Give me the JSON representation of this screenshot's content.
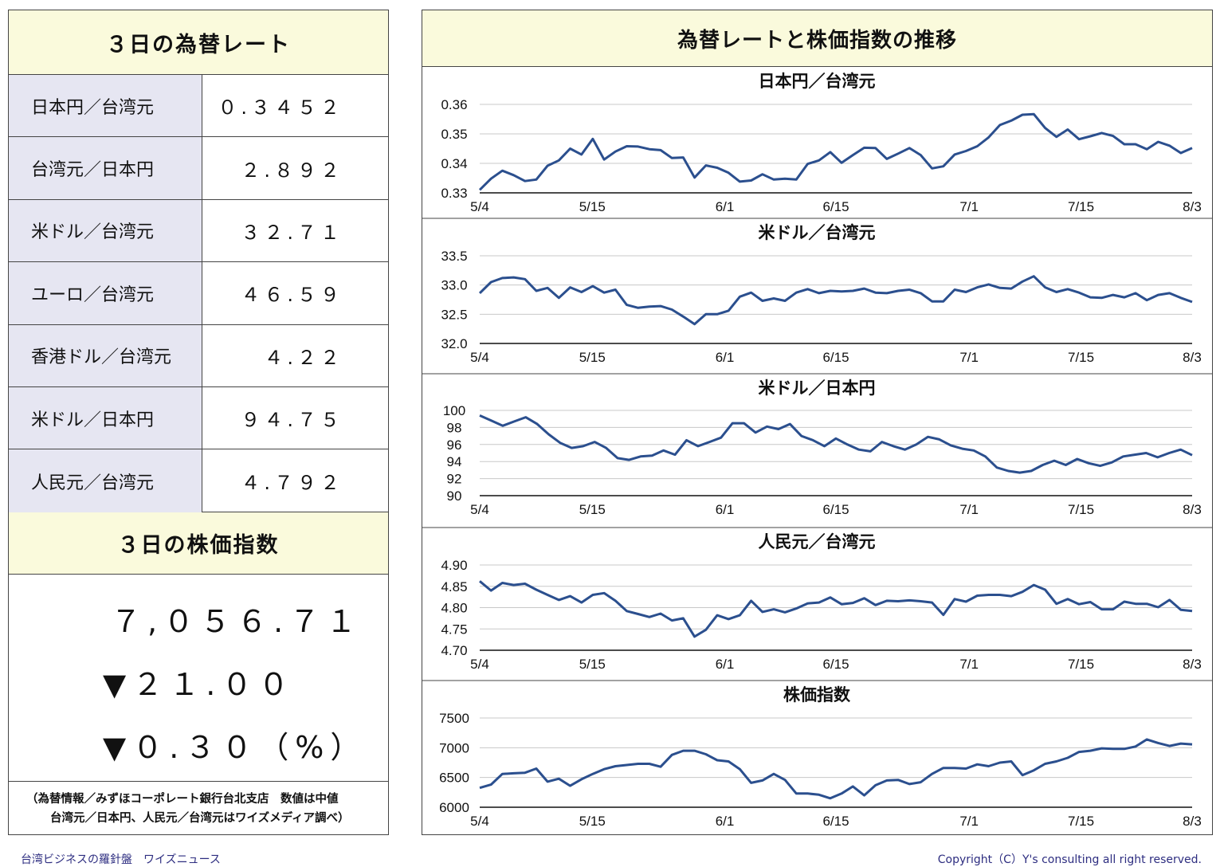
{
  "rates_panel": {
    "title": "３日の為替レート",
    "rows": [
      {
        "label": "日本円／台湾元",
        "value": "０.３４５２"
      },
      {
        "label": "台湾元／日本円",
        "value": "２.８９２"
      },
      {
        "label": "米ドル／台湾元",
        "value": "３２.７１"
      },
      {
        "label": "ユーロ／台湾元",
        "value": "４６.５９"
      },
      {
        "label": "香港ドル／台湾元",
        "value": "４.２２"
      },
      {
        "label": "米ドル／日本円",
        "value": "９４.７５"
      },
      {
        "label": "人民元／台湾元",
        "value": "４.７９２"
      }
    ]
  },
  "stock_panel": {
    "title": "３日の株価指数",
    "index": "７,０５６.７１",
    "change": "▼２１.００",
    "change_pct": "▼０.３０（%）"
  },
  "note": {
    "line1": "（為替情報／みずほコーポレート銀行台北支店　数値は中値",
    "line2": "台湾元／日本円、人民元／台湾元はワイズメディア調べ）"
  },
  "charts_panel": {
    "title": "為替レートと株価指数の推移"
  },
  "footer": {
    "left": "台湾ビジネスの羅針盤　ワイズニュース",
    "right": "Copyright（C）Y's consulting all right reserved."
  },
  "chart_data": [
    {
      "type": "line",
      "title": "日本円／台湾元",
      "x_ticks": [
        "5/4",
        "5/15",
        "6/1",
        "6/15",
        "7/1",
        "7/15",
        "8/3"
      ],
      "y_ticks": [
        "0.36",
        "0.35",
        "0.34",
        "0.33"
      ],
      "ylim": [
        0.33,
        0.36
      ],
      "color": "#2b4f8e",
      "values": [
        0.331,
        0.3348,
        0.3375,
        0.336,
        0.334,
        0.3345,
        0.3392,
        0.341,
        0.345,
        0.343,
        0.3483,
        0.3413,
        0.344,
        0.3458,
        0.3457,
        0.3448,
        0.3445,
        0.3418,
        0.342,
        0.3352,
        0.3393,
        0.3385,
        0.3368,
        0.3338,
        0.3342,
        0.3363,
        0.3345,
        0.3348,
        0.3345,
        0.3398,
        0.341,
        0.3438,
        0.3402,
        0.3428,
        0.3453,
        0.3452,
        0.3415,
        0.3433,
        0.3452,
        0.3428,
        0.3383,
        0.339,
        0.343,
        0.3442,
        0.3458,
        0.3488,
        0.353,
        0.3545,
        0.3565,
        0.3567,
        0.352,
        0.349,
        0.3515,
        0.3482,
        0.3492,
        0.3503,
        0.3493,
        0.3465,
        0.3465,
        0.3448,
        0.3473,
        0.346,
        0.3435,
        0.3452
      ]
    },
    {
      "type": "line",
      "title": "米ドル／台湾元",
      "x_ticks": [
        "5/4",
        "5/15",
        "6/1",
        "6/15",
        "7/1",
        "7/15",
        "8/3"
      ],
      "y_ticks": [
        "33.5",
        "33.0",
        "32.5",
        "32.0"
      ],
      "ylim": [
        32.0,
        33.5
      ],
      "color": "#2b4f8e",
      "values": [
        32.86,
        33.05,
        33.12,
        33.13,
        33.1,
        32.9,
        32.95,
        32.78,
        32.96,
        32.88,
        32.98,
        32.87,
        32.92,
        32.66,
        32.61,
        32.63,
        32.64,
        32.58,
        32.46,
        32.33,
        32.5,
        32.5,
        32.56,
        32.8,
        32.87,
        32.73,
        32.77,
        32.73,
        32.87,
        32.93,
        32.86,
        32.9,
        32.89,
        32.9,
        32.94,
        32.87,
        32.86,
        32.9,
        32.92,
        32.86,
        32.72,
        32.72,
        32.92,
        32.88,
        32.96,
        33.01,
        32.95,
        32.94,
        33.06,
        33.15,
        32.96,
        32.88,
        32.93,
        32.87,
        32.79,
        32.78,
        32.83,
        32.79,
        32.86,
        32.74,
        32.83,
        32.86,
        32.78,
        32.71
      ]
    },
    {
      "type": "line",
      "title": "米ドル／日本円",
      "x_ticks": [
        "5/4",
        "5/15",
        "6/1",
        "6/15",
        "7/1",
        "7/15",
        "8/3"
      ],
      "y_ticks": [
        "100",
        "98",
        "96",
        "94",
        "92",
        "90"
      ],
      "ylim": [
        90,
        100
      ],
      "color": "#2b4f8e",
      "values": [
        99.4,
        98.8,
        98.2,
        98.7,
        99.2,
        98.4,
        97.2,
        96.2,
        95.6,
        95.8,
        96.3,
        95.6,
        94.4,
        94.2,
        94.6,
        94.7,
        95.3,
        94.8,
        96.5,
        95.8,
        96.3,
        96.8,
        98.5,
        98.5,
        97.4,
        98.1,
        97.8,
        98.4,
        97.0,
        96.5,
        95.8,
        96.7,
        96.0,
        95.4,
        95.2,
        96.3,
        95.8,
        95.4,
        96.0,
        96.9,
        96.6,
        95.9,
        95.5,
        95.3,
        94.6,
        93.3,
        92.9,
        92.7,
        92.9,
        93.6,
        94.1,
        93.6,
        94.3,
        93.8,
        93.5,
        93.9,
        94.6,
        94.8,
        95.0,
        94.5,
        95.0,
        95.4,
        94.75
      ]
    },
    {
      "type": "line",
      "title": "人民元／台湾元",
      "x_ticks": [
        "5/4",
        "5/15",
        "6/1",
        "6/15",
        "7/1",
        "7/15",
        "8/3"
      ],
      "y_ticks": [
        "4.90",
        "4.85",
        "4.80",
        "4.75",
        "4.70"
      ],
      "ylim": [
        4.7,
        4.9
      ],
      "color": "#2b4f8e",
      "values": [
        4.862,
        4.84,
        4.858,
        4.853,
        4.856,
        4.842,
        4.83,
        4.818,
        4.827,
        4.812,
        4.83,
        4.834,
        4.816,
        4.792,
        4.785,
        4.778,
        4.786,
        4.77,
        4.775,
        4.732,
        4.748,
        4.782,
        4.773,
        4.782,
        4.816,
        4.79,
        4.796,
        4.789,
        4.798,
        4.81,
        4.812,
        4.824,
        4.808,
        4.811,
        4.822,
        4.806,
        4.816,
        4.815,
        4.817,
        4.815,
        4.812,
        4.783,
        4.82,
        4.814,
        4.828,
        4.83,
        4.83,
        4.827,
        4.837,
        4.853,
        4.842,
        4.809,
        4.82,
        4.808,
        4.813,
        4.796,
        4.796,
        4.814,
        4.809,
        4.809,
        4.801,
        4.818,
        4.795,
        4.792
      ]
    },
    {
      "type": "line",
      "title": "株価指数",
      "x_ticks": [
        "5/4",
        "5/15",
        "6/1",
        "6/15",
        "7/1",
        "7/15",
        "8/3"
      ],
      "y_ticks": [
        "7500",
        "7000",
        "6500",
        "6000"
      ],
      "ylim": [
        6000,
        7500
      ],
      "color": "#2b4f8e",
      "values": [
        6325,
        6380,
        6560,
        6570,
        6580,
        6650,
        6430,
        6480,
        6360,
        6470,
        6560,
        6640,
        6690,
        6710,
        6730,
        6730,
        6680,
        6880,
        6950,
        6950,
        6890,
        6790,
        6770,
        6640,
        6410,
        6450,
        6560,
        6460,
        6230,
        6230,
        6210,
        6150,
        6230,
        6350,
        6200,
        6370,
        6450,
        6460,
        6390,
        6420,
        6560,
        6660,
        6660,
        6650,
        6720,
        6690,
        6750,
        6770,
        6540,
        6620,
        6730,
        6770,
        6830,
        6930,
        6950,
        6990,
        6980,
        6980,
        7020,
        7140,
        7080,
        7030,
        7070,
        7056.71
      ]
    }
  ]
}
